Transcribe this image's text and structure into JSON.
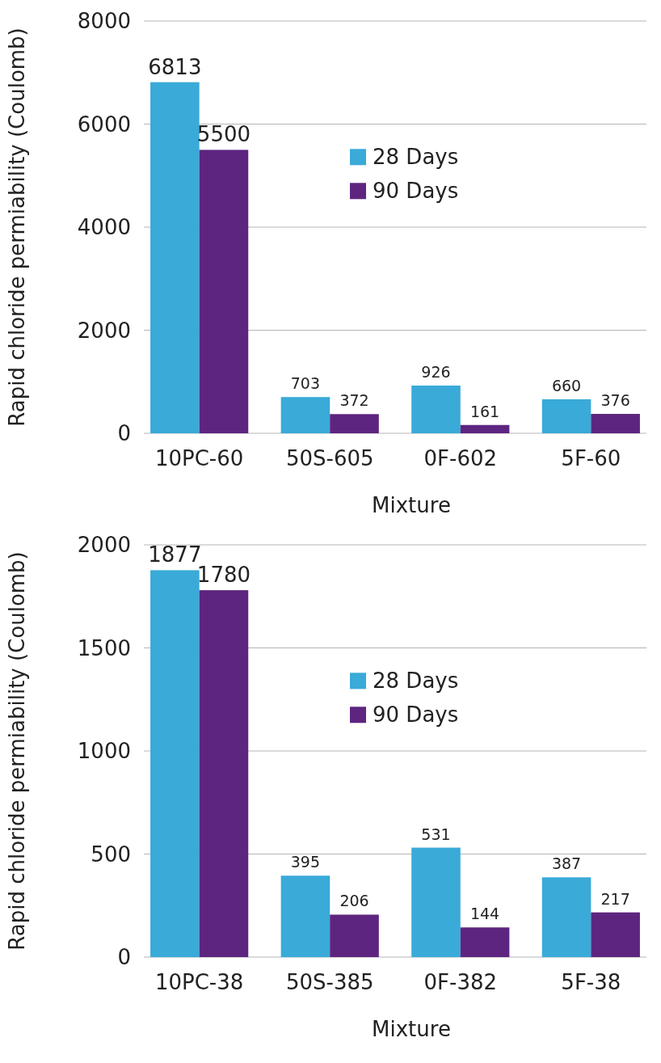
{
  "chart_data": [
    {
      "type": "bar",
      "xlabel": "Mixture",
      "ylabel": "Rapid chloride permiability (Coulomb)",
      "categories": [
        "10PC-60",
        "50S-605",
        "0F-602",
        "5F-60"
      ],
      "series": [
        {
          "name": "28 Days",
          "color": "#3aaad8",
          "values": [
            6813,
            703,
            926,
            660
          ]
        },
        {
          "name": "90 Days",
          "color": "#5e2580",
          "values": [
            5500,
            372,
            161,
            376
          ]
        }
      ],
      "ylim": [
        0,
        8000
      ],
      "yticks": [
        0,
        2000,
        4000,
        6000,
        8000
      ],
      "grid": "y",
      "legend": "top right",
      "data_labels": true
    },
    {
      "type": "bar",
      "xlabel": "Mixture",
      "ylabel": "Rapid chloride permiability (Coulomb)",
      "categories": [
        "10PC-38",
        "50S-385",
        "0F-382",
        "5F-38"
      ],
      "series": [
        {
          "name": "28 Days",
          "color": "#3aaad8",
          "values": [
            1877,
            395,
            531,
            387
          ]
        },
        {
          "name": "90 Days",
          "color": "#5e2580",
          "values": [
            1780,
            206,
            144,
            217
          ]
        }
      ],
      "ylim": [
        0,
        2000
      ],
      "yticks": [
        0,
        500,
        1000,
        1500,
        2000
      ],
      "grid": "y",
      "legend": "top right",
      "data_labels": true
    }
  ]
}
